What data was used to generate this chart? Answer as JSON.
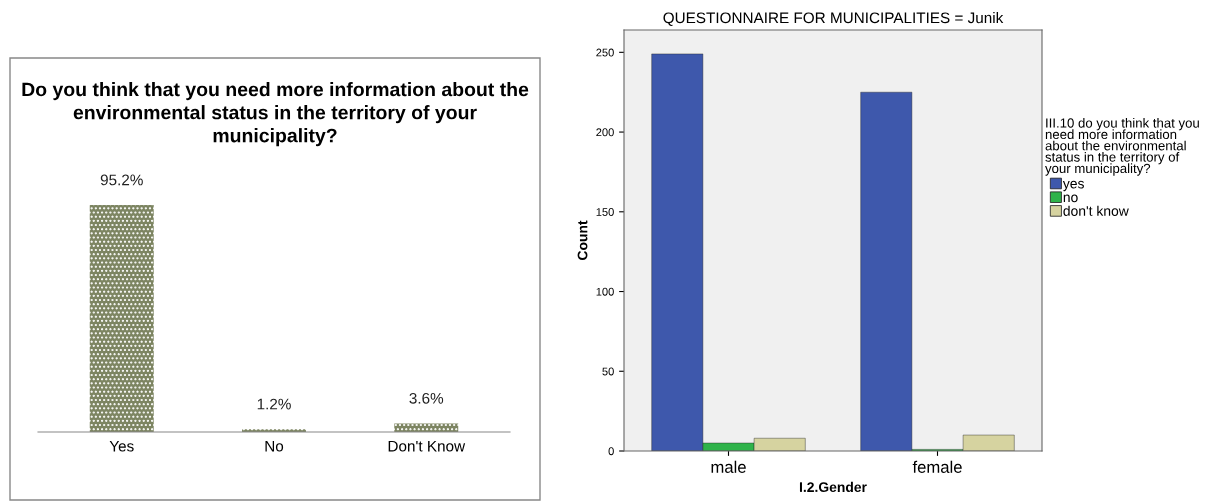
{
  "chart_data": [
    {
      "type": "bar",
      "title": "Do you think that you need more information about the environmental status in the territory of your municipality?",
      "categories": [
        "Yes",
        "No",
        "Don't Know"
      ],
      "values": [
        95.2,
        1.2,
        3.6
      ],
      "value_labels": [
        "95.2%",
        "1.2%",
        "3.6%"
      ],
      "color": "#7d8562"
    },
    {
      "type": "bar",
      "title": "QUESTIONNAIRE FOR MUNICIPALITIES = Junik",
      "xlabel": "I.2.Gender",
      "ylabel": "Count",
      "legend_title": "III.10 do you think that you need more information about the environmental status in the territory of your municipality?",
      "legend": "right",
      "grid": false,
      "categories": [
        "male",
        "female"
      ],
      "ylim": [
        0,
        264
      ],
      "yticks": [
        0,
        50,
        100,
        150,
        200,
        250
      ],
      "series": [
        {
          "name": "yes",
          "color": "#3e58ac",
          "values": [
            249,
            225
          ]
        },
        {
          "name": "no",
          "color": "#2fb34a",
          "values": [
            5,
            1
          ]
        },
        {
          "name": "don't know",
          "color": "#d6d3a0",
          "values": [
            8,
            10
          ]
        }
      ]
    }
  ]
}
